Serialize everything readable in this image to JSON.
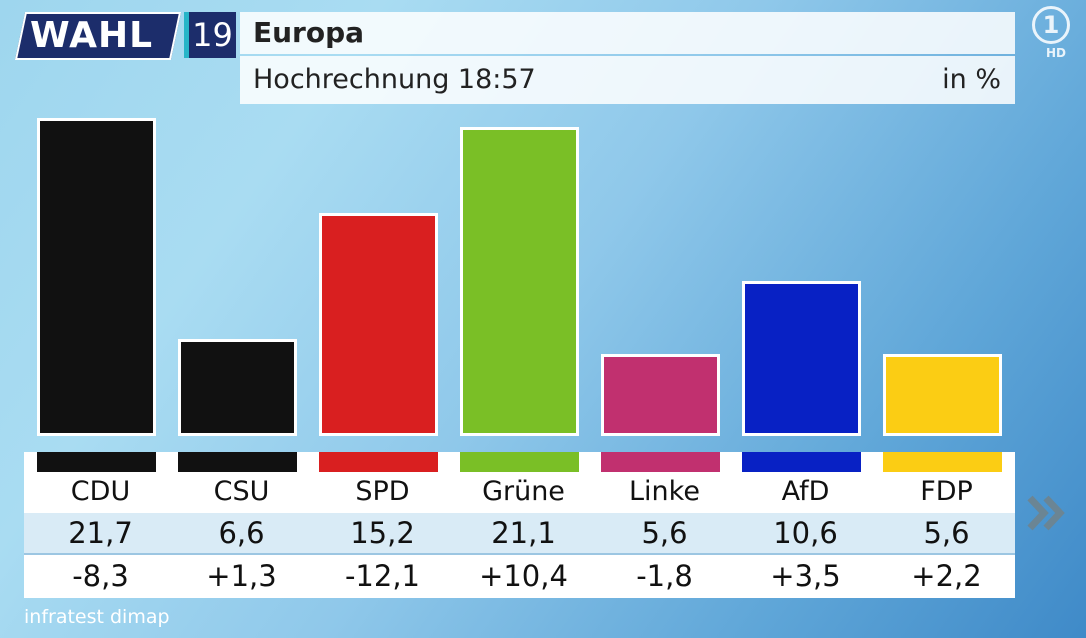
{
  "header": {
    "logo_text": "WAHL",
    "logo_year": "19",
    "title": "Europa",
    "subtitle": "Hochrechnung 18:57",
    "unit": "in %"
  },
  "broadcaster": {
    "logo_icon": "ard-1-logo-icon",
    "hd_label": "HD"
  },
  "chart_data": {
    "type": "bar",
    "title": "Europa",
    "subtitle": "Hochrechnung 18:57",
    "ylabel": "in %",
    "ylim": [
      0,
      22.5
    ],
    "categories": [
      "CDU",
      "CSU",
      "SPD",
      "Grüne",
      "Linke",
      "AfD",
      "FDP"
    ],
    "values": [
      21.7,
      6.6,
      15.2,
      21.1,
      5.6,
      10.6,
      5.6
    ],
    "value_labels": [
      "21,7",
      "6,6",
      "15,2",
      "21,1",
      "5,6",
      "10,6",
      "5,6"
    ],
    "changes": [
      "-8,3",
      "+1,3",
      "-12,1",
      "+10,4",
      "-1,8",
      "+3,5",
      "+2,2"
    ],
    "colors": [
      "#111111",
      "#111111",
      "#d91f20",
      "#7abf26",
      "#c1306f",
      "#0821c4",
      "#fbcd14"
    ]
  },
  "navigation": {
    "next_icon": "double-chevron-right-icon"
  },
  "source": "infratest dimap"
}
